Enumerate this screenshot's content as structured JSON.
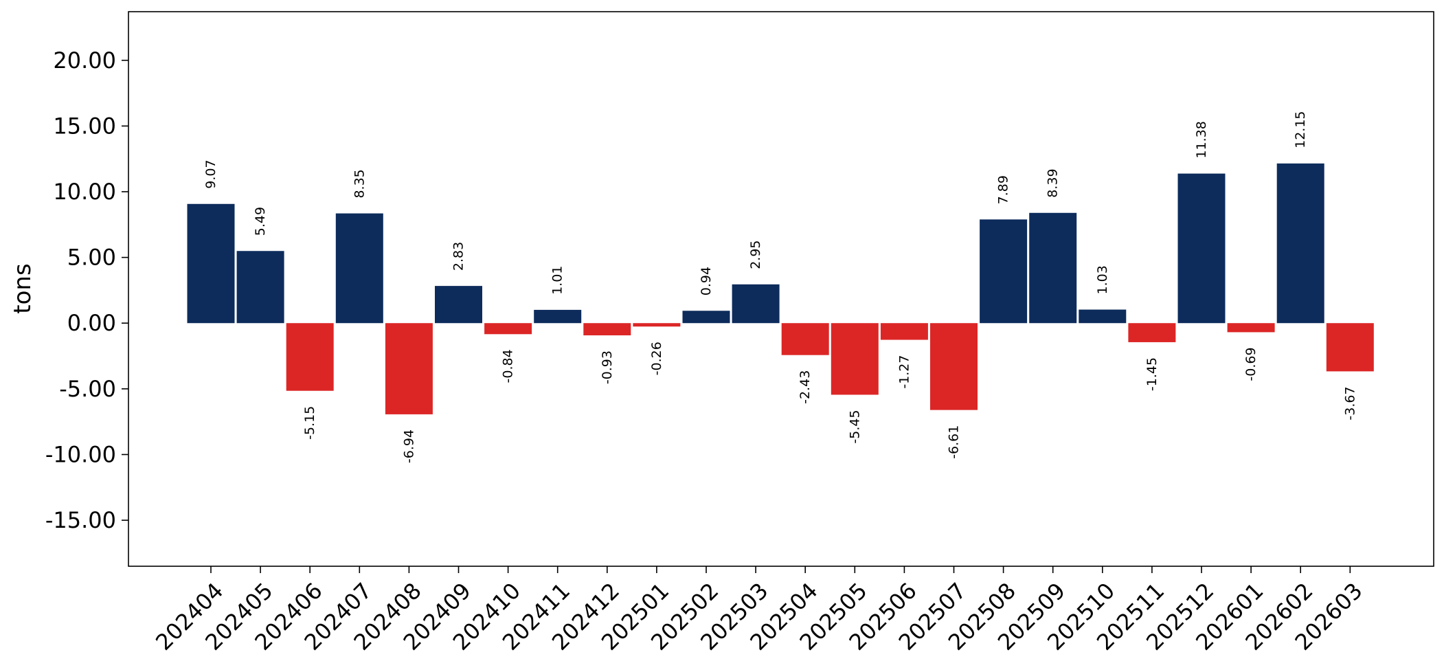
{
  "chart_data": {
    "type": "bar",
    "title": "",
    "xlabel": "",
    "ylabel": "tons",
    "ylim": [
      -18.5,
      23.7
    ],
    "yticks": [
      -15,
      -10,
      -5,
      0,
      5,
      10,
      15,
      20
    ],
    "ytick_labels": [
      "-15.00",
      "-10.00",
      "-5.00",
      "0.00",
      "5.00",
      "10.00",
      "15.00",
      "20.00"
    ],
    "categories": [
      "202404",
      "202405",
      "202406",
      "202407",
      "202408",
      "202409",
      "202410",
      "202411",
      "202412",
      "202501",
      "202502",
      "202503",
      "202504",
      "202505",
      "202506",
      "202507",
      "202508",
      "202509",
      "202510",
      "202511",
      "202512",
      "202601",
      "202602",
      "202603"
    ],
    "values": [
      9.07,
      5.49,
      -5.15,
      8.35,
      -6.94,
      2.83,
      -0.84,
      1.01,
      -0.93,
      -0.26,
      0.94,
      2.95,
      -2.43,
      -5.45,
      -1.27,
      -6.61,
      7.89,
      8.39,
      1.03,
      -1.45,
      11.38,
      -0.69,
      12.15,
      -3.67
    ],
    "value_labels": [
      "9.07",
      "5.49",
      "-5.15",
      "8.35",
      "-6.94",
      "2.83",
      "-0.84",
      "1.01",
      "-0.93",
      "-0.26",
      "0.94",
      "2.95",
      "-2.43",
      "-5.45",
      "-1.27",
      "-6.61",
      "7.89",
      "8.39",
      "1.03",
      "-1.45",
      "11.38",
      "-0.69",
      "12.15",
      "-3.67"
    ],
    "colors": {
      "positive": "#0d2c5c",
      "negative": "#dc2626"
    },
    "grid": false,
    "legend": "none"
  }
}
